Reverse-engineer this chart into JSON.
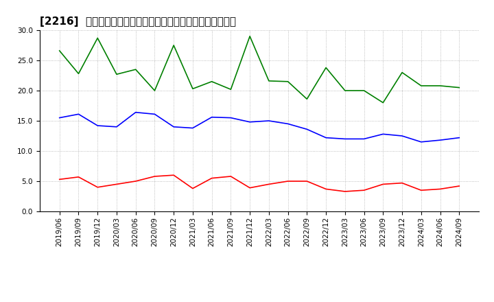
{
  "title": "[2216]  売上債権回転率、買入債務回転率、在庫回転率の推移",
  "ylim": [
    0.0,
    30.0
  ],
  "yticks": [
    0.0,
    5.0,
    10.0,
    15.0,
    20.0,
    25.0,
    30.0
  ],
  "dates": [
    "2019/06",
    "2019/09",
    "2019/12",
    "2020/03",
    "2020/06",
    "2020/09",
    "2020/12",
    "2021/03",
    "2021/06",
    "2021/09",
    "2021/12",
    "2022/03",
    "2022/06",
    "2022/09",
    "2022/12",
    "2023/03",
    "2023/06",
    "2023/09",
    "2023/12",
    "2024/03",
    "2024/06",
    "2024/09"
  ],
  "series": [
    {
      "name": "売上債権回転率",
      "color": "#ff0000",
      "values": [
        5.3,
        5.7,
        4.0,
        4.5,
        5.0,
        5.8,
        6.0,
        3.8,
        5.5,
        5.8,
        3.9,
        4.5,
        5.0,
        5.0,
        3.7,
        3.3,
        3.5,
        4.5,
        4.7,
        3.5,
        3.7,
        4.2
      ]
    },
    {
      "name": "買入債務回転率",
      "color": "#0000ff",
      "values": [
        15.5,
        16.1,
        14.2,
        14.0,
        16.4,
        16.1,
        14.0,
        13.8,
        15.6,
        15.5,
        14.8,
        15.0,
        14.5,
        13.6,
        12.2,
        12.0,
        12.0,
        12.8,
        12.5,
        11.5,
        11.8,
        12.2
      ]
    },
    {
      "name": "在庫回転率",
      "color": "#008000",
      "values": [
        26.6,
        22.8,
        28.7,
        22.7,
        23.5,
        20.0,
        27.5,
        20.3,
        21.5,
        20.2,
        29.0,
        21.6,
        21.5,
        18.6,
        23.8,
        20.0,
        20.0,
        18.0,
        23.0,
        20.8,
        20.8,
        20.5
      ]
    }
  ],
  "background_color": "#ffffff",
  "grid_color": "#aaaaaa",
  "title_fontsize": 11,
  "tick_fontsize": 7.5,
  "legend_fontsize": 9
}
